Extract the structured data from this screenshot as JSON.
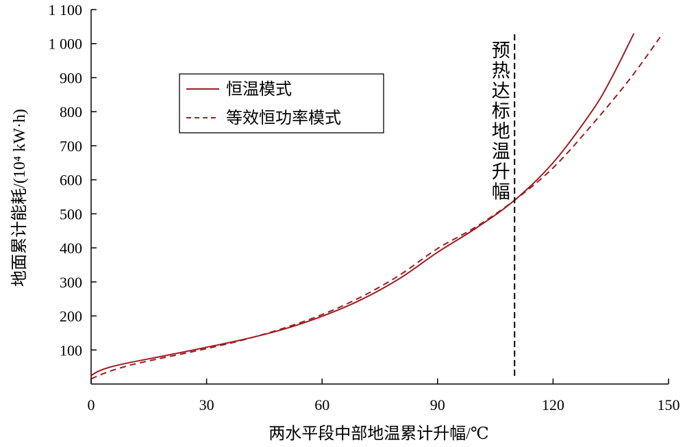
{
  "chart_data": {
    "type": "line",
    "xlabel": "两水平段中部地温累计升幅/℃",
    "ylabel": "地面累计能耗/(10⁴ kW·h)",
    "xlim": [
      0,
      150
    ],
    "ylim": [
      0,
      1100
    ],
    "x_ticks": [
      0,
      30,
      60,
      90,
      120,
      150
    ],
    "x_tick_labels": [
      "0",
      "30",
      "60",
      "90",
      "120",
      "150"
    ],
    "y_ticks": [
      100,
      200,
      300,
      400,
      500,
      600,
      700,
      800,
      900,
      1000,
      1100
    ],
    "y_tick_labels": [
      "100",
      "200",
      "300",
      "400",
      "500",
      "600",
      "700",
      "800",
      "900",
      "1 000",
      "1 100"
    ],
    "grid": false,
    "legend_position": "upper-left",
    "series": [
      {
        "name": "恒温模式",
        "style": "solid",
        "color": "#9e1b20",
        "x": [
          0,
          2,
          5,
          10,
          15,
          20,
          30,
          40,
          50,
          60,
          70,
          80,
          90,
          100,
          110,
          120,
          130,
          135,
          141
        ],
        "y": [
          25,
          38,
          50,
          63,
          74,
          85,
          108,
          132,
          161,
          199,
          247,
          309,
          387,
          458,
          540,
          650,
          800,
          895,
          1030
        ]
      },
      {
        "name": "等效恒功率模式",
        "style": "dashed",
        "color": "#9e1b20",
        "x": [
          0,
          2,
          5,
          10,
          15,
          20,
          30,
          40,
          50,
          60,
          70,
          80,
          90,
          100,
          110,
          120,
          130,
          140,
          148.5
        ],
        "y": [
          15,
          25,
          38,
          55,
          68,
          80,
          104,
          131,
          164,
          204,
          255,
          319,
          398,
          462,
          540,
          635,
          760,
          897,
          1030
        ]
      }
    ],
    "annotations": [
      {
        "type": "vline",
        "x": 110,
        "label": "预热达标地温升幅",
        "style": "dashed"
      }
    ]
  }
}
